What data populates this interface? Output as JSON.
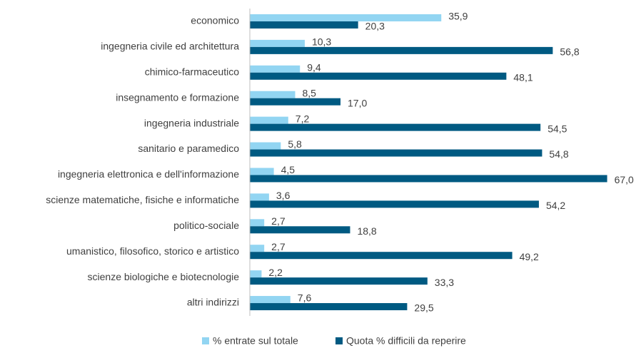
{
  "chart_data": {
    "type": "barh",
    "categories": [
      "economico",
      "ingegneria civile ed architettura",
      "chimico-farmaceutico",
      "insegnamento e formazione",
      "ingegneria industriale",
      "sanitario e paramedico",
      "ingegneria elettronica e dell'informazione",
      "scienze matematiche, fisiche e informatiche",
      "politico-sociale",
      "umanistico, filosofico, storico e artistico",
      "scienze biologiche e biotecnologie",
      "altri indirizzi"
    ],
    "series": [
      {
        "name": "% entrate sul totale",
        "color": "#92d5f2",
        "values": [
          35.9,
          10.3,
          9.4,
          8.5,
          7.2,
          5.8,
          4.5,
          3.6,
          2.7,
          2.7,
          2.2,
          7.6
        ],
        "value_labels": [
          "35,9",
          "10,3",
          "9,4",
          "8,5",
          "7,2",
          "5,8",
          "4,5",
          "3,6",
          "2,7",
          "2,7",
          "2,2",
          "7,6"
        ]
      },
      {
        "name": "Quota % difficili da reperire",
        "color": "#005a82",
        "values": [
          20.3,
          56.8,
          48.1,
          17.0,
          54.5,
          54.8,
          67.0,
          54.2,
          18.8,
          49.2,
          33.3,
          29.5
        ],
        "value_labels": [
          "20,3",
          "56,8",
          "48,1",
          "17,0",
          "54,5",
          "54,8",
          "67,0",
          "54,2",
          "18,8",
          "49,2",
          "33,3",
          "29,5"
        ]
      }
    ],
    "xlim": [
      0,
      70
    ],
    "legend": "bottom"
  }
}
